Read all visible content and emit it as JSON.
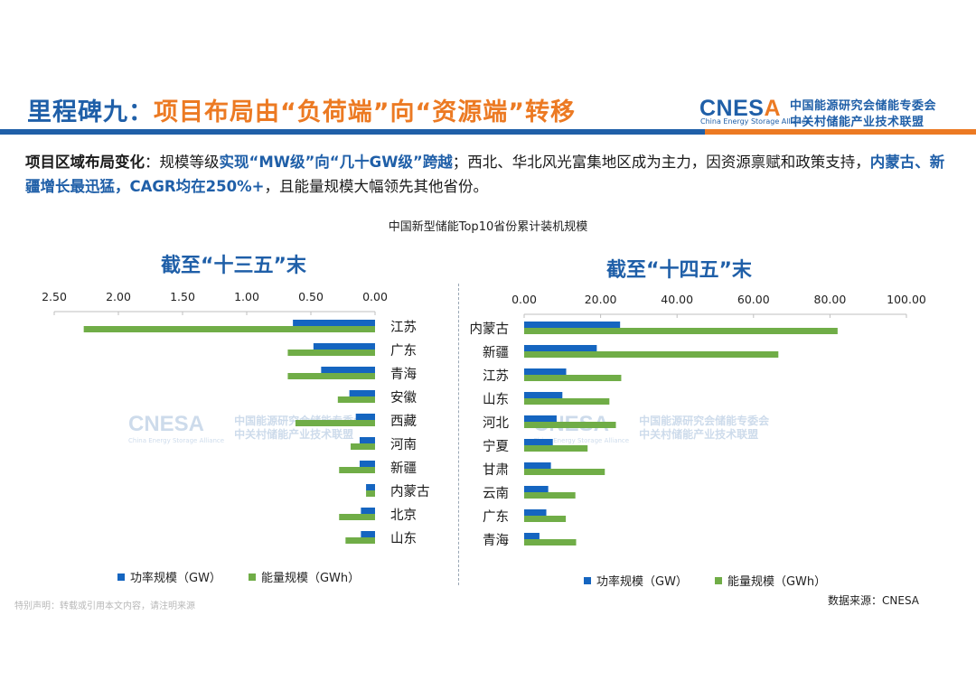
{
  "header": {
    "title_prefix": "里程碑九：",
    "title_main": "项目布局由“负荷端”向“资源端”转移"
  },
  "logo": {
    "word_main": "CNES",
    "word_accent": "A",
    "sub": "China Energy Storage Alliance",
    "cn_line1": "中国能源研究会储能专委会",
    "cn_line2": "中关村储能产业技术联盟"
  },
  "summary": {
    "label": "项目区域布局变化",
    "sep": "：规模等级",
    "hl1": "实现“MW级”向“几十GW级”跨越",
    "mid": "；西北、华北风光富集地区成为主力，因资源禀赋和政策支持，",
    "hl2": "内蒙古、新疆增长最迅猛，CAGR均在250%+",
    "end": "，且能量规模大幅领先其他省份。"
  },
  "chart_title": "中国新型储能Top10省份累计装机规模",
  "legend": {
    "power": "功率规模（GW）",
    "energy": "能量规模（GWh）"
  },
  "colors": {
    "power": "#1565c0",
    "energy": "#70ad47",
    "brand_blue": "#1f5fa8",
    "brand_orange": "#ec7a23"
  },
  "chart_data": [
    {
      "type": "bar",
      "orientation": "horizontal",
      "title": "截至“十三五”末",
      "categories": [
        "江苏",
        "广东",
        "青海",
        "安徽",
        "西藏",
        "河南",
        "新疆",
        "内蒙古",
        "北京",
        "山东"
      ],
      "series": [
        {
          "name": "功率规模（GW）",
          "values": [
            0.64,
            0.48,
            0.42,
            0.2,
            0.15,
            0.12,
            0.12,
            0.07,
            0.11,
            0.11
          ]
        },
        {
          "name": "能量规模（GWh）",
          "values": [
            2.27,
            0.68,
            0.68,
            0.29,
            0.62,
            0.19,
            0.28,
            0.07,
            0.28,
            0.23
          ]
        }
      ],
      "xlim": [
        0,
        2.5
      ],
      "ticks": [
        "2.50",
        "2.00",
        "1.50",
        "1.00",
        "0.50",
        "0.00"
      ],
      "tick_values": [
        2.5,
        2.0,
        1.5,
        1.0,
        0.5,
        0.0
      ],
      "axis_direction": "reversed",
      "legend_position": "bottom"
    },
    {
      "type": "bar",
      "orientation": "horizontal",
      "title": "截至“十四五”末",
      "categories": [
        "内蒙古",
        "新疆",
        "江苏",
        "山东",
        "河北",
        "宁夏",
        "甘肃",
        "云南",
        "广东",
        "青海"
      ],
      "series": [
        {
          "name": "功率规模（GW）",
          "values": [
            25.1,
            19.0,
            11.0,
            10.0,
            8.5,
            7.5,
            7.0,
            6.3,
            5.8,
            4.0
          ]
        },
        {
          "name": "能量规模（GWh）",
          "values": [
            82.0,
            66.5,
            25.4,
            22.3,
            24.0,
            16.6,
            21.1,
            13.4,
            10.9,
            13.6
          ]
        }
      ],
      "xlim": [
        0,
        100
      ],
      "ticks": [
        "0.00",
        "20.00",
        "40.00",
        "60.00",
        "80.00",
        "100.00"
      ],
      "tick_values": [
        0,
        20,
        40,
        60,
        80,
        100
      ],
      "axis_direction": "normal",
      "legend_position": "bottom"
    }
  ],
  "watermark": {
    "word": "CNESA",
    "sub": "China Energy Storage Alliance",
    "cn1": "中国能源研究会储能专委会",
    "cn2": "中关村储能产业技术联盟"
  },
  "footer": {
    "disclaimer": "特别声明：转载或引用本文内容，请注明来源",
    "source": "数据来源：CNESA"
  }
}
